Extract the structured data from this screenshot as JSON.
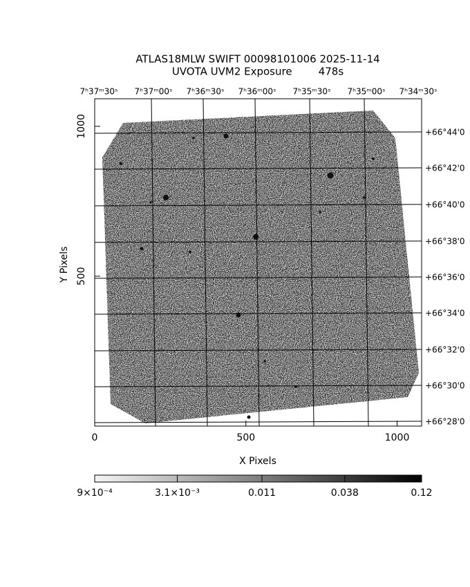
{
  "chart_data": {
    "type": "image",
    "title": "ATLAS18MLW SWIFT 00098101006 2025-11-14",
    "subtitle": "UVOTA UVM2 Exposure        478s",
    "x_label": "X Pixels",
    "y_label": "Y Pixels",
    "xlim": [
      0,
      1081
    ],
    "ylim": [
      0,
      1092
    ],
    "xticks": [
      0,
      500,
      1000
    ],
    "yticks": [
      500,
      1000
    ],
    "ra_ticks": [
      "7ʰ37ᵐ30ˢ",
      "7ʰ37ᵐ00ˢ",
      "7ʰ36ᵐ30ˢ",
      "7ʰ36ᵐ00ˢ",
      "7ʰ35ᵐ30ˢ",
      "7ʰ35ᵐ00ˢ",
      "7ʰ34ᵐ30ˢ"
    ],
    "dec_ticks": [
      "+66°44'0",
      "+66°42'0",
      "+66°40'0",
      "+66°38'0",
      "+66°36'0",
      "+66°34'0",
      "+66°32'0",
      "+66°30'0",
      "+66°28'0"
    ],
    "colorbar": {
      "log": true,
      "lim": [
        0.0009,
        0.12
      ],
      "ticks": [
        {
          "value": 0.0009,
          "label": "9×10⁻⁴"
        },
        {
          "value": 0.0031,
          "label": "3.1×10⁻³"
        },
        {
          "value": 0.011,
          "label": "0.011"
        },
        {
          "value": 0.038,
          "label": "0.038"
        },
        {
          "value": 0.12,
          "label": "0.12"
        }
      ]
    }
  }
}
